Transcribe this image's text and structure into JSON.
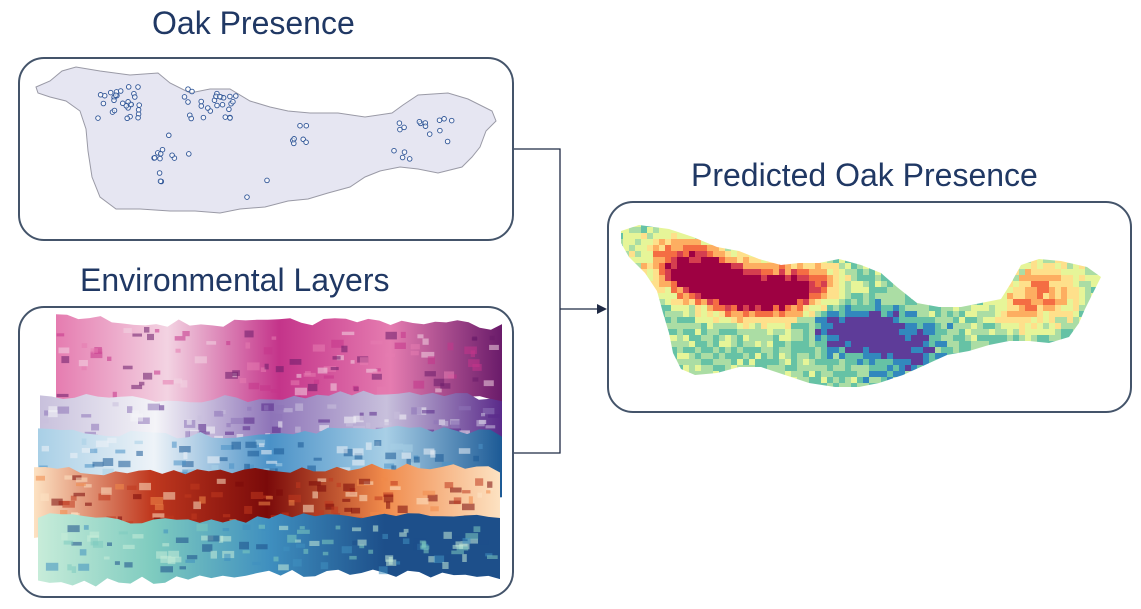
{
  "diagram": {
    "inputs": [
      {
        "id": "oak-presence",
        "title": "Oak Presence"
      },
      {
        "id": "environmental-layers",
        "title": "Environmental Layers"
      }
    ],
    "output": {
      "id": "predicted-oak-presence",
      "title": "Predicted Oak Presence"
    }
  },
  "colors": {
    "title_text": "#203864",
    "box_border": "#44546a",
    "connector": "#1f2a44",
    "map_fill": "#e6e6f2",
    "map_outline": "#9a9aa6",
    "presence_marker": "#2f5597"
  },
  "layer_palettes": [
    [
      "#f3d3e2",
      "#e57cb0",
      "#c4348a",
      "#6a1b6a"
    ],
    [
      "#f4f4f8",
      "#c8c0dc",
      "#8e74b8",
      "#5a2a8a"
    ],
    [
      "#eef3f8",
      "#a8cfe6",
      "#4a91c7",
      "#1c5a96"
    ],
    [
      "#fde2c2",
      "#f08a4b",
      "#c0391f",
      "#7a0a0a"
    ],
    [
      "#c7ecd9",
      "#7ecbbf",
      "#3f8fbf",
      "#1d4f8a"
    ]
  ],
  "prediction_palette": [
    "#5e3c99",
    "#3288bd",
    "#66c2a5",
    "#abdda4",
    "#e6f598",
    "#fee08b",
    "#fdae61",
    "#f46d43",
    "#d53e4f",
    "#9e0142"
  ]
}
